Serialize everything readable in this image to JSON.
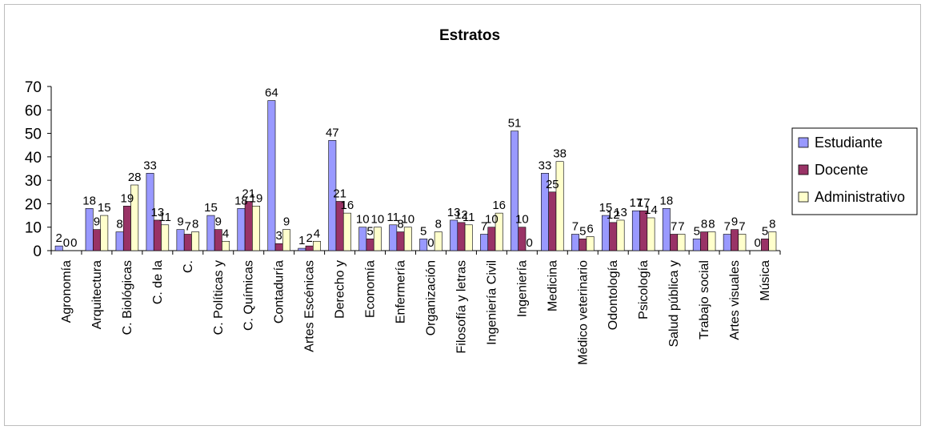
{
  "chart_data": {
    "type": "bar",
    "title": "Estratos",
    "xlabel": "",
    "ylabel": "",
    "ylim": [
      0,
      70
    ],
    "yticks": [
      0,
      10,
      20,
      30,
      40,
      50,
      60,
      70
    ],
    "grid": false,
    "legend_position": "right",
    "categories": [
      "Agronomía",
      "Arquitectura",
      "C. Biológicas",
      "C. de la",
      "C.",
      "C. Políticas y",
      "C. Químicas",
      "Contaduría",
      "Artes Escénicas",
      "Derecho y",
      "Economía",
      "Enfermería",
      "Organización",
      "Filosofía y letras",
      "Ingeniería Civil",
      "Ingeniería",
      "Medicina",
      "Médico veterinario",
      "Odontología",
      "Psicología",
      "Salud pública y",
      "Trabajo social",
      "Artes visuales",
      "Música"
    ],
    "series": [
      {
        "name": "Estudiante",
        "color": "#9999ff",
        "values": [
          2,
          18,
          8,
          33,
          9,
          15,
          18,
          64,
          1,
          47,
          10,
          11,
          5,
          13,
          7,
          51,
          33,
          7,
          15,
          17,
          18,
          5,
          7,
          0
        ]
      },
      {
        "name": "Docente",
        "color": "#993366",
        "values": [
          0,
          9,
          19,
          13,
          7,
          9,
          21,
          3,
          2,
          21,
          5,
          8,
          0,
          12,
          10,
          10,
          25,
          5,
          12,
          17,
          7,
          8,
          9,
          5
        ]
      },
      {
        "name": "Administrativo",
        "color": "#ffffcc",
        "values": [
          0,
          15,
          28,
          11,
          8,
          4,
          19,
          9,
          4,
          16,
          10,
          10,
          8,
          11,
          16,
          0,
          38,
          6,
          13,
          14,
          7,
          8,
          7,
          8
        ]
      }
    ]
  }
}
